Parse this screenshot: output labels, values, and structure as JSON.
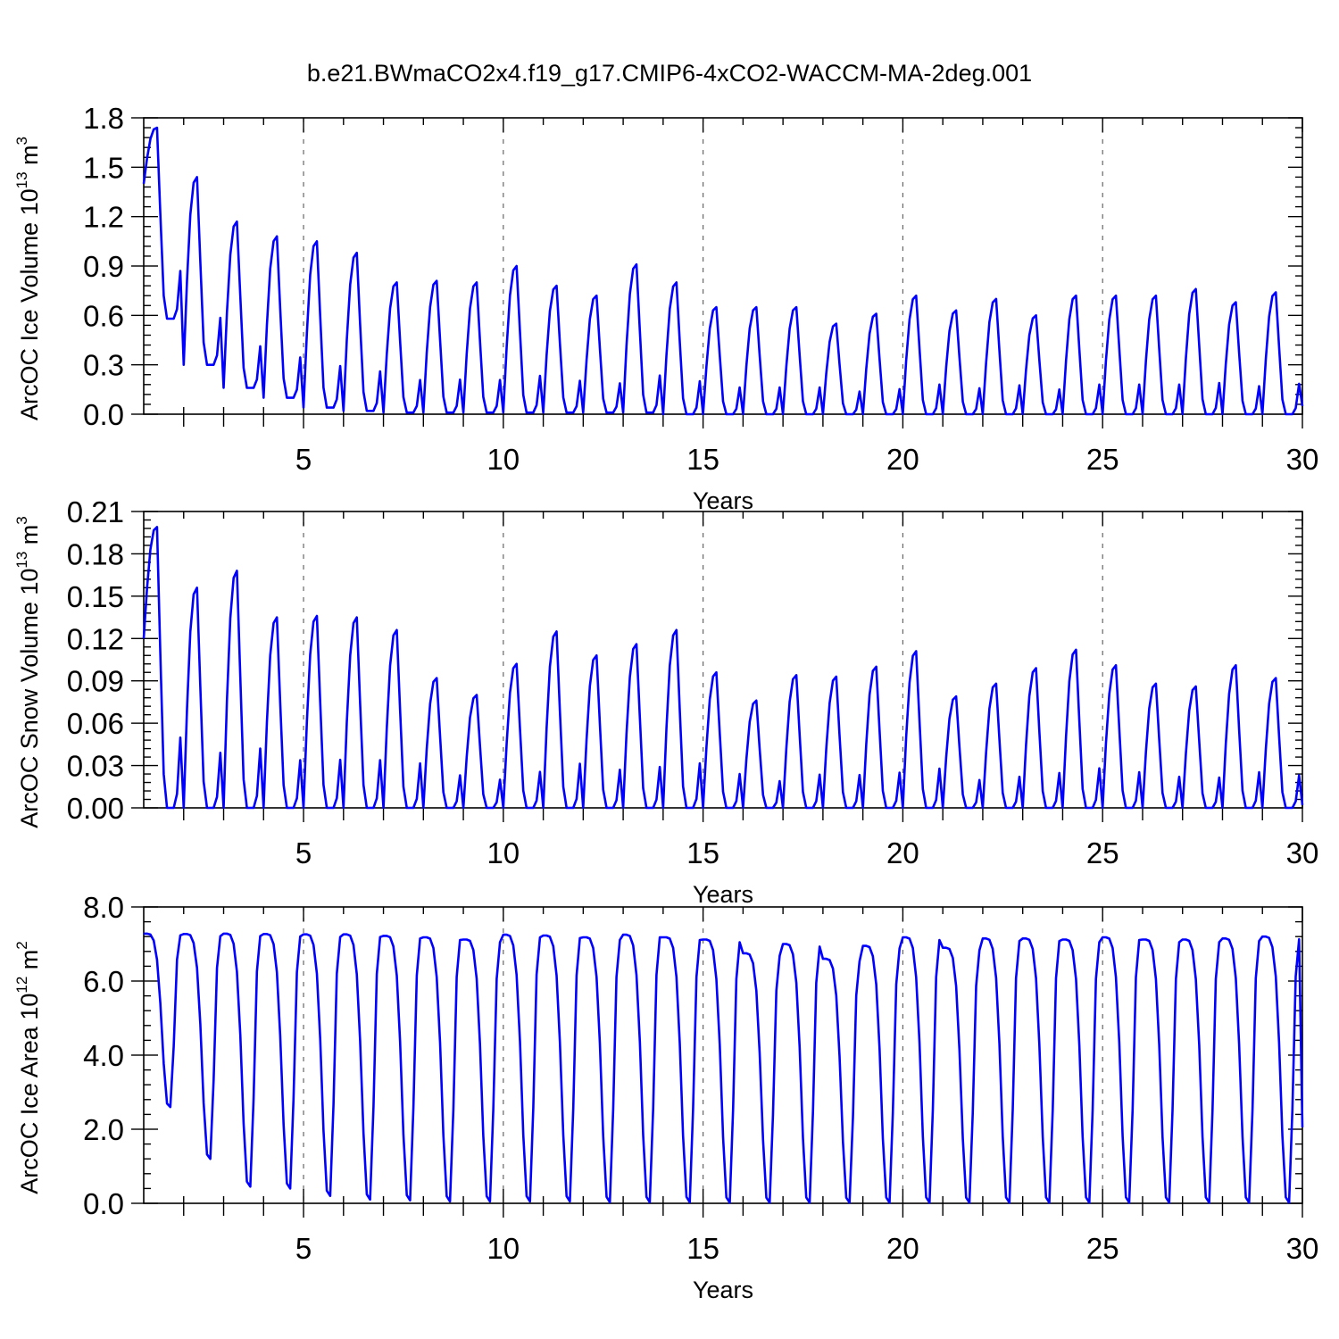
{
  "title": "b.e21.BWmaCO2x4.f19_g17.CMIP6-4xCO2-WACCM-MA-2deg.001",
  "chart_data": [
    {
      "type": "line",
      "ylabel_main": "ArcOC Ice Volume 10",
      "ylabel_sup": "13",
      "ylabel_unit": " m",
      "ylabel_unit_sup": "3",
      "xlabel": "Years",
      "xlim": [
        1,
        30
      ],
      "ylim": [
        0,
        1.8
      ],
      "yticks": [
        "0.0",
        "0.3",
        "0.6",
        "0.9",
        "1.2",
        "1.5",
        "1.8"
      ],
      "xticks": [
        "5",
        "10",
        "15",
        "20",
        "25",
        "30"
      ],
      "grid": "x dashed",
      "series": [
        {
          "color": "#0000ff",
          "peaks": [
            1.74,
            1.44,
            1.17,
            1.08,
            1.05,
            0.98,
            0.8,
            0.81,
            0.8,
            0.9,
            0.78,
            0.72,
            0.91,
            0.8,
            0.65,
            0.65,
            0.65,
            0.55,
            0.61,
            0.72,
            0.63,
            0.7,
            0.6,
            0.72,
            0.72,
            0.72,
            0.76,
            0.68,
            0.74
          ],
          "troughs": [
            0.58,
            0.3,
            0.16,
            0.1,
            0.04,
            0.02,
            0.01,
            0.01,
            0.01,
            0.01,
            0.01,
            0.01,
            0.01,
            0.0,
            0.0,
            0.0,
            0.0,
            0.0,
            0.0,
            0.0,
            0.0,
            0.0,
            0.0,
            0.0,
            0.0,
            0.0,
            0.0,
            0.0,
            0.0
          ],
          "start": 1.4,
          "end": 0.05
        }
      ]
    },
    {
      "type": "line",
      "ylabel_main": "ArcOC Snow Volume 10",
      "ylabel_sup": "13",
      "ylabel_unit": " m",
      "ylabel_unit_sup": "3",
      "xlabel": "Years",
      "xlim": [
        1,
        30
      ],
      "ylim": [
        0,
        0.21
      ],
      "yticks": [
        "0.00",
        "0.03",
        "0.06",
        "0.09",
        "0.12",
        "0.15",
        "0.18",
        "0.21"
      ],
      "xticks": [
        "5",
        "10",
        "15",
        "20",
        "25",
        "30"
      ],
      "grid": "x dashed",
      "series": [
        {
          "color": "#0000ff",
          "peaks": [
            0.199,
            0.156,
            0.168,
            0.135,
            0.136,
            0.135,
            0.126,
            0.092,
            0.08,
            0.102,
            0.125,
            0.108,
            0.116,
            0.126,
            0.096,
            0.076,
            0.094,
            0.093,
            0.1,
            0.111,
            0.079,
            0.088,
            0.099,
            0.112,
            0.101,
            0.088,
            0.086,
            0.101,
            0.092
          ],
          "troughs": [
            0.0,
            0.0,
            0.0,
            0.0,
            0.0,
            0.0,
            0.0,
            0.0,
            0.0,
            0.0,
            0.0,
            0.0,
            0.0,
            0.0,
            0.0,
            0.0,
            0.0,
            0.0,
            0.0,
            0.0,
            0.0,
            0.0,
            0.0,
            0.0,
            0.0,
            0.0,
            0.0,
            0.0,
            0.0
          ],
          "start": 0.12,
          "end": 0.002
        }
      ]
    },
    {
      "type": "line",
      "ylabel_main": "ArcOC Ice Area 10",
      "ylabel_sup": "12",
      "ylabel_unit": " m",
      "ylabel_unit_sup": "2",
      "xlabel": "Years",
      "xlim": [
        1,
        30
      ],
      "ylim": [
        0,
        8.0
      ],
      "yticks": [
        "0.0",
        "2.0",
        "4.0",
        "6.0",
        "8.0"
      ],
      "xticks": [
        "5",
        "10",
        "15",
        "20",
        "25",
        "30"
      ],
      "grid": "x dashed",
      "series": [
        {
          "color": "#0000ff",
          "peaks": [
            7.28,
            7.27,
            7.28,
            7.27,
            7.26,
            7.26,
            7.22,
            7.18,
            7.12,
            7.25,
            7.23,
            7.18,
            7.25,
            7.18,
            7.12,
            6.75,
            7.0,
            6.6,
            6.95,
            7.18,
            6.9,
            7.15,
            7.15,
            7.12,
            7.18,
            7.12,
            7.12,
            7.15,
            7.2
          ],
          "troughs": [
            2.6,
            1.2,
            0.45,
            0.4,
            0.2,
            0.1,
            0.08,
            0.05,
            0.05,
            0.05,
            0.05,
            0.03,
            0.03,
            0.03,
            0.02,
            0.02,
            0.02,
            0.02,
            0.02,
            0.02,
            0.02,
            0.02,
            0.02,
            0.02,
            0.02,
            0.02,
            0.02,
            0.02,
            0.02
          ],
          "start": 7.28,
          "end": 2.05
        }
      ]
    }
  ]
}
